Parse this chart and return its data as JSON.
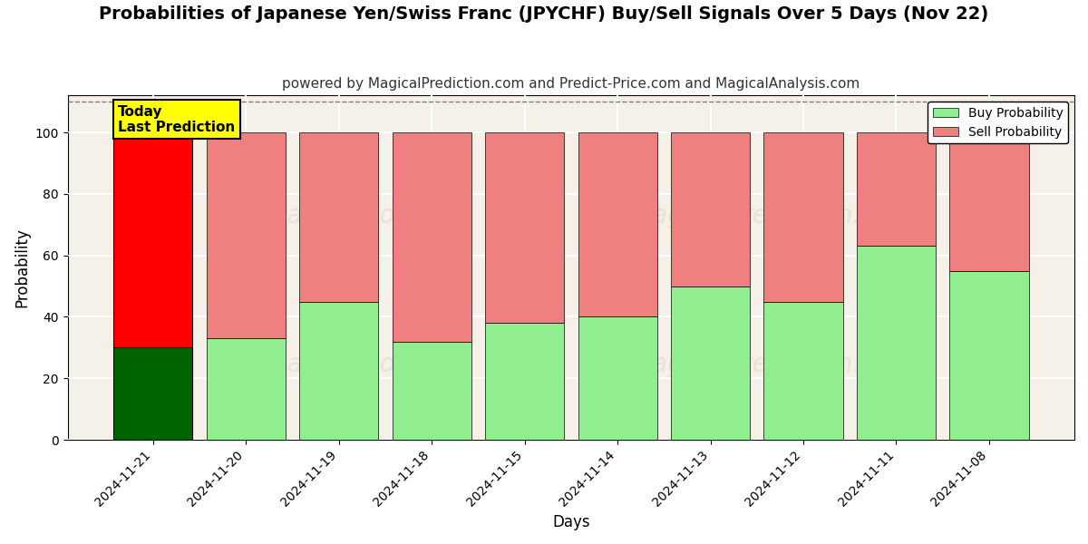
{
  "title": "Probabilities of Japanese Yen/Swiss Franc (JPYCHF) Buy/Sell Signals Over 5 Days (Nov 22)",
  "subtitle": "powered by MagicalPrediction.com and Predict-Price.com and MagicalAnalysis.com",
  "xlabel": "Days",
  "ylabel": "Probability",
  "watermark_line1": "MagicalAnalysis.com",
  "watermark_line2": "MagicalPrediction.com",
  "categories": [
    "2024-11-21",
    "2024-11-20",
    "2024-11-19",
    "2024-11-18",
    "2024-11-15",
    "2024-11-14",
    "2024-11-13",
    "2024-11-12",
    "2024-11-11",
    "2024-11-08"
  ],
  "buy_values": [
    30,
    33,
    45,
    32,
    38,
    40,
    50,
    45,
    63,
    55
  ],
  "sell_values": [
    70,
    67,
    55,
    68,
    62,
    60,
    50,
    55,
    37,
    45
  ],
  "buy_color_today": "#006400",
  "sell_color_today": "#ff0000",
  "buy_color_rest": "#90ee90",
  "sell_color_rest": "#f08080",
  "today_annotation_bg": "#ffff00",
  "today_annotation_text": "Today\nLast Prediction",
  "ylim": [
    0,
    112
  ],
  "dashed_line_y": 110,
  "yticks": [
    0,
    20,
    40,
    60,
    80,
    100
  ],
  "legend_buy": "Buy Probability",
  "legend_sell": "Sell Probability",
  "figsize": [
    12,
    6
  ],
  "dpi": 100,
  "background_color": "#ffffff",
  "plot_bg_color": "#f5f0e8",
  "grid_color": "#ffffff",
  "title_fontsize": 14,
  "subtitle_fontsize": 11,
  "axis_label_fontsize": 12,
  "tick_fontsize": 10,
  "bar_width": 0.85
}
